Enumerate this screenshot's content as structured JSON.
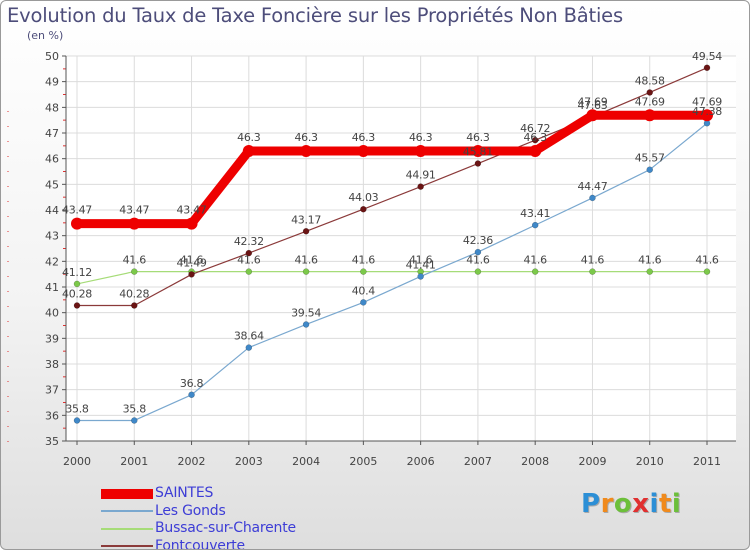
{
  "header": {
    "title": "Evolution du Taux de Taxe Foncière sur les Propriétés Non Bâties",
    "subtitle": "(en %)"
  },
  "brand": {
    "letters": [
      "P",
      "r",
      "o",
      "x",
      "i",
      "t",
      "i"
    ],
    "colors": [
      "#2c8fd6",
      "#f08a1c",
      "#6cbf3a",
      "#e03030",
      "#2c8fd6",
      "#f08a1c",
      "#6cbf3a"
    ]
  },
  "chart_data": {
    "type": "line",
    "title": "Evolution du Taux de Taxe Foncière sur les Propriétés Non Bâties",
    "ylabel": "(en %)",
    "xlabel": "",
    "ylim": [
      35,
      50
    ],
    "yticks": [
      "35",
      "36",
      "37",
      "38",
      "39",
      "40",
      "41",
      "42",
      "43",
      "44",
      "45",
      "46",
      "47",
      "48",
      "49",
      "50"
    ],
    "x": [
      "2000",
      "2001",
      "2002",
      "2003",
      "2004",
      "2005",
      "2006",
      "2007",
      "2008",
      "2009",
      "2010",
      "2011"
    ],
    "grid": true,
    "legend_position": "bottom-left",
    "series": [
      {
        "name": "SAINTES",
        "color": "#ee0000",
        "marker_color": "#ee0000",
        "values": [
          43.47,
          43.47,
          43.47,
          46.3,
          46.3,
          46.3,
          46.3,
          46.3,
          46.3,
          47.69,
          47.69,
          47.69
        ],
        "labels": [
          "43.47",
          "43.47",
          "43.47",
          "46.3",
          "46.3",
          "46.3",
          "46.3",
          "46.3",
          "46.3",
          "47.69",
          "47.69",
          "47.69"
        ]
      },
      {
        "name": "Les Gonds",
        "color": "#7aa8cf",
        "marker_color": "#3f88c8",
        "values": [
          35.8,
          35.8,
          36.8,
          38.64,
          39.54,
          40.4,
          41.41,
          42.36,
          43.41,
          44.47,
          45.57,
          47.38
        ],
        "labels": [
          "35.8",
          "35.8",
          "36.8",
          "38.64",
          "39.54",
          "40.4",
          "41.41",
          "42.36",
          "43.41",
          "44.47",
          "45.57",
          "47.38"
        ]
      },
      {
        "name": "Bussac-sur-Charente",
        "color": "#a6dc78",
        "marker_color": "#7cc94a",
        "values": [
          41.12,
          41.6,
          41.6,
          41.6,
          41.6,
          41.6,
          41.6,
          41.6,
          41.6,
          41.6,
          41.6,
          41.6
        ],
        "labels": [
          "41.12",
          "41.6",
          "41.6",
          "41.6",
          "41.6",
          "41.6",
          "41.6",
          "41.6",
          "41.6",
          "41.6",
          "41.6",
          "41.6"
        ]
      },
      {
        "name": "Fontcouverte",
        "color": "#8b3a3a",
        "marker_color": "#6b1414",
        "values": [
          40.28,
          40.28,
          41.49,
          42.32,
          43.17,
          44.03,
          44.91,
          45.81,
          46.72,
          47.63,
          48.58,
          49.54
        ],
        "labels": [
          "40.28",
          "40.28",
          "41.49",
          "42.32",
          "43.17",
          "44.03",
          "44.91",
          "45.81",
          "46.72",
          "47.63",
          "48.58",
          "49.54"
        ]
      }
    ]
  }
}
